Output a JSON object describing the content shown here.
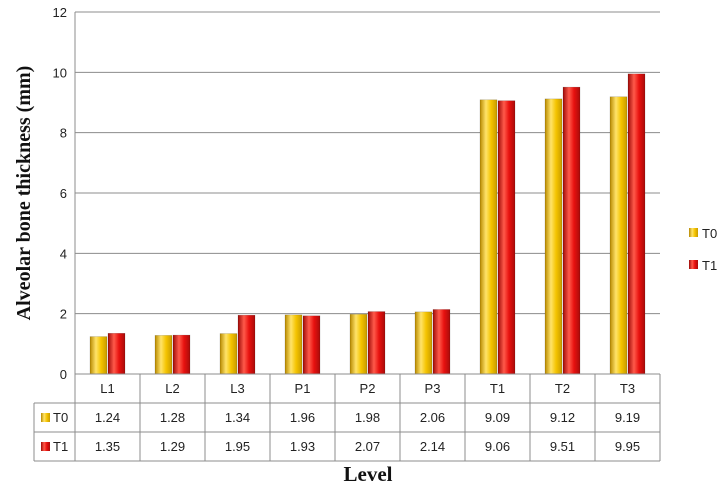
{
  "chart_data": {
    "type": "bar",
    "categories": [
      "L1",
      "L2",
      "L3",
      "P1",
      "P2",
      "P3",
      "T1",
      "T2",
      "T3"
    ],
    "series": [
      {
        "name": "T0",
        "values": [
          1.24,
          1.28,
          1.34,
          1.96,
          1.98,
          2.06,
          9.09,
          9.12,
          9.19
        ],
        "color": "#F5C400",
        "value_labels": [
          "1.24",
          "1.28",
          "1.34",
          "1.96",
          "1.98",
          "2.06",
          "9.09",
          "9.12",
          "9.19"
        ]
      },
      {
        "name": "T1",
        "values": [
          1.35,
          1.29,
          1.95,
          1.93,
          2.07,
          2.14,
          9.06,
          9.51,
          9.95
        ],
        "color": "#E8110F",
        "value_labels": [
          "1.35",
          "1.29",
          "1.95",
          "1.93",
          "2.07",
          "2.14",
          "9.06",
          "9.51",
          "9.95"
        ]
      }
    ],
    "title": "",
    "xlabel": "Level",
    "ylabel": "Alveolar bone thickness (mm)",
    "ylim": [
      0,
      12
    ],
    "yticks": [
      "0",
      "2",
      "4",
      "6",
      "8",
      "10",
      "12"
    ],
    "grid": true,
    "legend_position": "right",
    "data_table": true
  }
}
